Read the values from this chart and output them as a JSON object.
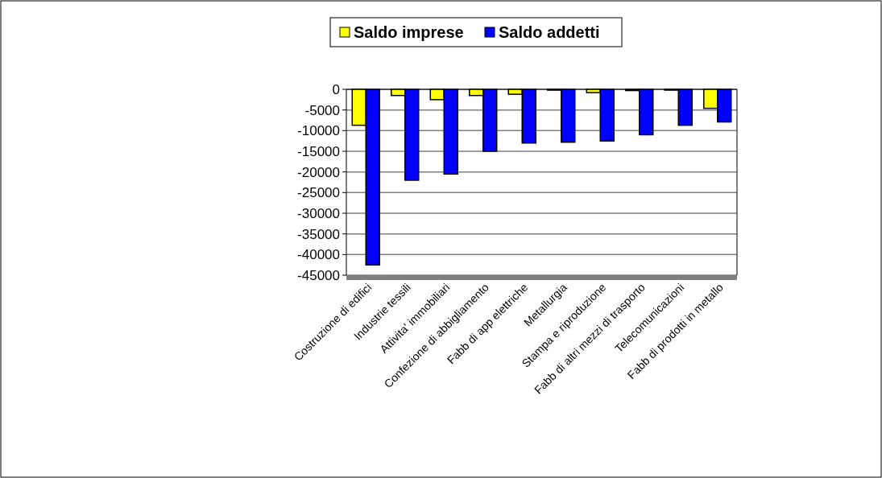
{
  "chart_data": {
    "type": "bar",
    "categories": [
      "Costruzione di edifici",
      "Industrie tessili",
      "Attivita' immobiliari",
      "Confezione di abbigliamento",
      "Fabb di app elettriche",
      "Metallurgia",
      "Stampa e riproduzione",
      "Fabb di altri mezzi di trasporto",
      "Telecomunicazioni",
      "Fabb di prodotti in metallo"
    ],
    "series": [
      {
        "name": "Saldo imprese",
        "color": "#ffff00",
        "values": [
          -8700,
          -1500,
          -2500,
          -1500,
          -1200,
          -200,
          -800,
          -300,
          -200,
          -4600
        ]
      },
      {
        "name": "Saldo addetti",
        "color": "#0000ff",
        "values": [
          -42500,
          -22000,
          -20500,
          -15000,
          -13000,
          -12800,
          -12500,
          -11000,
          -8700,
          -7900
        ]
      }
    ],
    "ylim": [
      -45000,
      0
    ],
    "yticks": [
      0,
      -5000,
      -10000,
      -15000,
      -20000,
      -25000,
      -30000,
      -35000,
      -40000,
      -45000
    ],
    "grid": "y",
    "legend": "top"
  }
}
